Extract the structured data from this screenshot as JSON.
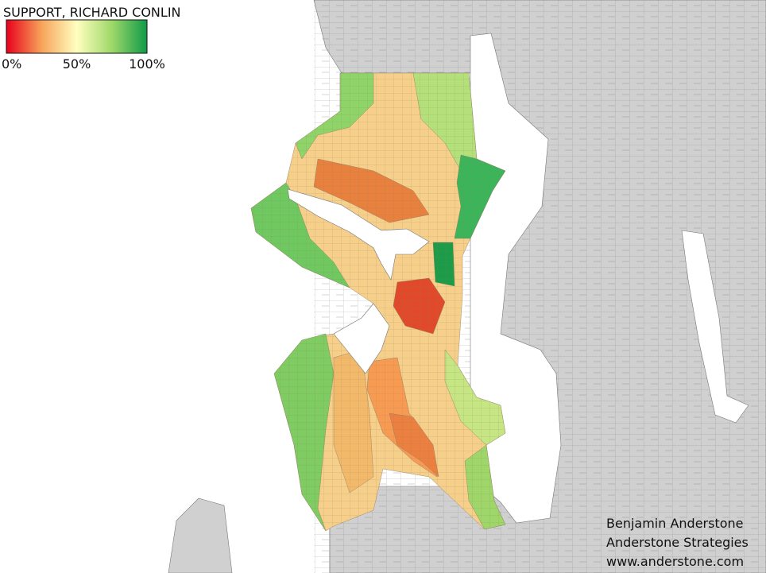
{
  "legend": {
    "title": "SUPPORT, RICHARD CONLIN",
    "colors": [
      "#e8001c",
      "#f7a35a",
      "#ffffc0",
      "#9fd86a",
      "#0f9a48"
    ],
    "range": [
      0,
      100
    ],
    "ticks": [
      {
        "value": 0,
        "label": "0%"
      },
      {
        "value": 50,
        "label": "50%"
      },
      {
        "value": 100,
        "label": "100%"
      }
    ]
  },
  "credits": [
    "Benjamin Anderstone",
    "Anderstone Strategies",
    "www.anderstone.com"
  ]
}
